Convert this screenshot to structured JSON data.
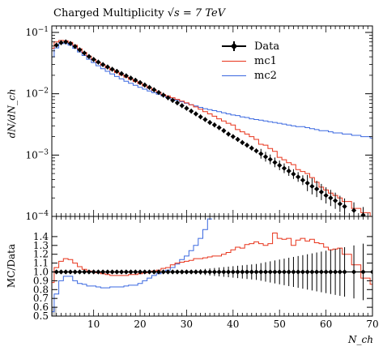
{
  "title": "Charged Multiplicity",
  "title_sqrt_s": "√s = 7 TeV",
  "top_ylabel": "dN/dN_ch",
  "bottom_ylabel": "MC/Data",
  "xlabel": "N_ch",
  "legend": [
    {
      "name": "Data",
      "color": "#000000"
    },
    {
      "name": "mc1",
      "color": "#e8331a"
    },
    {
      "name": "mc2",
      "color": "#3a68e0"
    }
  ],
  "chart_data": [
    {
      "type": "line",
      "panel": "main",
      "yscale": "log",
      "xlim": [
        1,
        70
      ],
      "ylim": [
        0.0001,
        0.1
      ],
      "yticks": [
        0.0001,
        0.001,
        0.01,
        0.1
      ],
      "ytick_labels": [
        "10^-4",
        "10^-3",
        "10^-2",
        "10^-1"
      ],
      "legend_position": "top-right",
      "data": {
        "x": [
          2,
          3,
          4,
          5,
          6,
          7,
          8,
          9,
          10,
          11,
          12,
          13,
          14,
          15,
          16,
          17,
          18,
          19,
          20,
          21,
          22,
          23,
          24,
          25,
          26,
          27,
          28,
          29,
          30,
          31,
          32,
          33,
          34,
          35,
          36,
          37,
          38,
          39,
          40,
          41,
          42,
          43,
          44,
          45,
          46,
          47,
          48,
          49,
          50,
          51,
          52,
          53,
          54,
          55,
          56,
          57,
          58,
          59,
          60,
          61,
          62,
          63,
          64,
          66,
          68,
          70
        ],
        "y": [
          0.062,
          0.068,
          0.07,
          0.066,
          0.059,
          0.052,
          0.046,
          0.0405,
          0.0362,
          0.0328,
          0.0299,
          0.0273,
          0.0251,
          0.0232,
          0.0213,
          0.0196,
          0.018,
          0.0166,
          0.0152,
          0.0139,
          0.0127,
          0.0116,
          0.0105,
          0.0095,
          0.0086,
          0.0078,
          0.0071,
          0.0064,
          0.0058,
          0.0052,
          0.0047,
          0.0042,
          0.0038,
          0.0034,
          0.0031,
          0.0028,
          0.0025,
          0.0022,
          0.002,
          0.0018,
          0.0016,
          0.00145,
          0.0013,
          0.00117,
          0.00105,
          0.00094,
          0.00085,
          0.00076,
          0.00068,
          0.00061,
          0.00055,
          0.00049,
          0.00044,
          0.00039,
          0.00035,
          0.00031,
          0.00028,
          0.00025,
          0.00022,
          0.0002,
          0.00018,
          0.00016,
          0.000145,
          0.000125,
          0.000105,
          9e-05
        ]
      },
      "mc1": {
        "x": [
          1,
          2,
          3,
          4,
          5,
          6,
          7,
          8,
          9,
          10,
          11,
          12,
          13,
          14,
          15,
          16,
          17,
          18,
          19,
          20,
          21,
          22,
          23,
          24,
          25,
          26,
          27,
          28,
          29,
          30,
          31,
          32,
          33,
          34,
          35,
          36,
          37,
          38,
          39,
          40,
          41,
          42,
          43,
          44,
          45,
          46,
          47,
          48,
          49,
          50,
          51,
          52,
          53,
          54,
          55,
          56,
          57,
          58,
          59,
          60,
          61,
          62,
          63,
          64,
          66,
          68,
          70
        ],
        "y": [
          0.055,
          0.07,
          0.074,
          0.073,
          0.069,
          0.062,
          0.054,
          0.047,
          0.041,
          0.0362,
          0.0323,
          0.0292,
          0.0265,
          0.0242,
          0.0221,
          0.0202,
          0.0186,
          0.0171,
          0.0158,
          0.0146,
          0.0134,
          0.0124,
          0.0114,
          0.0106,
          0.0097,
          0.0092,
          0.0086,
          0.0081,
          0.0076,
          0.0071,
          0.0066,
          0.0061,
          0.0056,
          0.0051,
          0.0047,
          0.0043,
          0.0039,
          0.0036,
          0.0033,
          0.0031,
          0.0026,
          0.0024,
          0.0022,
          0.002,
          0.0018,
          0.0015,
          0.00145,
          0.00128,
          0.00115,
          0.00092,
          0.00084,
          0.00075,
          0.0007,
          0.00058,
          0.00054,
          0.0005,
          0.00043,
          0.00036,
          0.0003,
          0.00027,
          0.00024,
          0.00022,
          0.0002,
          0.000175,
          0.000135,
          0.000115,
          9e-05
        ]
      },
      "mc2": {
        "x": [
          1,
          2,
          3,
          4,
          5,
          6,
          7,
          8,
          9,
          10,
          11,
          12,
          13,
          14,
          15,
          16,
          17,
          18,
          19,
          20,
          21,
          22,
          23,
          24,
          25,
          26,
          27,
          28,
          29,
          30,
          31,
          32,
          33,
          34,
          35,
          36,
          37,
          38,
          39,
          40,
          41,
          42,
          43,
          44,
          45,
          46,
          47,
          48,
          49,
          50,
          51,
          52,
          53,
          54,
          55,
          56,
          57,
          58,
          59,
          60,
          61,
          62,
          63,
          64,
          66,
          68,
          70
        ],
        "y": [
          0.04,
          0.056,
          0.066,
          0.066,
          0.062,
          0.055,
          0.048,
          0.042,
          0.0365,
          0.0322,
          0.0286,
          0.0256,
          0.0232,
          0.021,
          0.0191,
          0.0175,
          0.016,
          0.0148,
          0.0137,
          0.0127,
          0.0119,
          0.0111,
          0.0104,
          0.0098,
          0.0092,
          0.0087,
          0.0082,
          0.0078,
          0.0074,
          0.007,
          0.0066,
          0.0063,
          0.006,
          0.0057,
          0.0055,
          0.0053,
          0.0051,
          0.0049,
          0.0047,
          0.0045,
          0.0044,
          0.0042,
          0.0041,
          0.0039,
          0.0038,
          0.0037,
          0.0036,
          0.0035,
          0.0034,
          0.0033,
          0.0032,
          0.0031,
          0.003,
          0.0029,
          0.0029,
          0.0028,
          0.0027,
          0.0026,
          0.0025,
          0.0025,
          0.0024,
          0.0023,
          0.0023,
          0.0022,
          0.0021,
          0.002,
          0.0019
        ]
      }
    },
    {
      "type": "line",
      "panel": "ratio",
      "xlim": [
        1,
        70
      ],
      "ylim": [
        0.5,
        1.5
      ],
      "xticks": [
        10,
        20,
        30,
        40,
        50,
        60,
        70
      ],
      "yticks": [
        0.5,
        0.6,
        0.7,
        0.8,
        0.9,
        1.0,
        1.1,
        1.2,
        1.3,
        1.4
      ],
      "ytick_labels": [
        "0.5",
        "0.6",
        "0.7",
        "0.8",
        "0.9",
        "1.0",
        "1.1",
        "1.2",
        "1.3",
        "1.4"
      ],
      "data": {
        "x": [
          2,
          3,
          4,
          5,
          6,
          7,
          8,
          9,
          10,
          11,
          12,
          13,
          14,
          15,
          16,
          17,
          18,
          19,
          20,
          21,
          22,
          23,
          24,
          25,
          26,
          27,
          28,
          29,
          30,
          31,
          32,
          33,
          34,
          35,
          36,
          37,
          38,
          39,
          40,
          41,
          42,
          43,
          44,
          45,
          46,
          47,
          48,
          49,
          50,
          51,
          52,
          53,
          54,
          55,
          56,
          57,
          58,
          59,
          60,
          61,
          62,
          63,
          64,
          66,
          68,
          70
        ],
        "y": [
          1,
          1,
          1,
          1,
          1,
          1,
          1,
          1,
          1,
          1,
          1,
          1,
          1,
          1,
          1,
          1,
          1,
          1,
          1,
          1,
          1,
          1,
          1,
          1,
          1,
          1,
          1,
          1,
          1,
          1,
          1,
          1,
          1,
          1,
          1,
          1,
          1,
          1,
          1,
          1,
          1,
          1,
          1,
          1,
          1,
          1,
          1,
          1,
          1,
          1,
          1,
          1,
          1,
          1,
          1,
          1,
          1,
          1,
          1,
          1,
          1,
          1,
          1,
          1,
          1,
          1
        ],
        "err": [
          0.01,
          0.01,
          0.01,
          0.01,
          0.01,
          0.01,
          0.01,
          0.01,
          0.01,
          0.01,
          0.01,
          0.01,
          0.01,
          0.01,
          0.01,
          0.01,
          0.01,
          0.01,
          0.01,
          0.01,
          0.01,
          0.01,
          0.01,
          0.01,
          0.01,
          0.01,
          0.01,
          0.01,
          0.015,
          0.02,
          0.025,
          0.03,
          0.035,
          0.04,
          0.045,
          0.05,
          0.055,
          0.06,
          0.065,
          0.07,
          0.075,
          0.08,
          0.085,
          0.09,
          0.1,
          0.11,
          0.12,
          0.13,
          0.14,
          0.15,
          0.16,
          0.17,
          0.18,
          0.19,
          0.2,
          0.21,
          0.22,
          0.23,
          0.24,
          0.25,
          0.26,
          0.27,
          0.28,
          0.3,
          0.32,
          0.35
        ]
      },
      "mc1": {
        "x": [
          1,
          2,
          3,
          4,
          5,
          6,
          7,
          8,
          9,
          10,
          11,
          12,
          13,
          14,
          15,
          16,
          17,
          18,
          19,
          20,
          21,
          22,
          23,
          24,
          25,
          26,
          27,
          28,
          29,
          30,
          31,
          32,
          33,
          34,
          35,
          36,
          37,
          38,
          39,
          40,
          41,
          42,
          43,
          44,
          45,
          46,
          47,
          48,
          49,
          50,
          51,
          52,
          53,
          54,
          55,
          56,
          57,
          58,
          59,
          60,
          61,
          62,
          63,
          64,
          66,
          68,
          70
        ],
        "y": [
          0.88,
          1.05,
          1.12,
          1.15,
          1.14,
          1.1,
          1.06,
          1.03,
          1.01,
          1.0,
          0.99,
          0.98,
          0.97,
          0.96,
          0.96,
          0.96,
          0.96,
          0.97,
          0.97,
          0.98,
          0.99,
          1.0,
          1.01,
          1.02,
          1.04,
          1.05,
          1.08,
          1.1,
          1.11,
          1.12,
          1.13,
          1.15,
          1.15,
          1.16,
          1.17,
          1.18,
          1.18,
          1.2,
          1.22,
          1.25,
          1.28,
          1.27,
          1.31,
          1.32,
          1.34,
          1.32,
          1.3,
          1.32,
          1.44,
          1.38,
          1.37,
          1.38,
          1.3,
          1.36,
          1.38,
          1.35,
          1.37,
          1.33,
          1.32,
          1.28,
          1.25,
          1.26,
          1.27,
          1.2,
          1.08,
          0.93,
          0.86
        ]
      },
      "mc2": {
        "x": [
          1,
          2,
          3,
          4,
          5,
          6,
          7,
          8,
          9,
          10,
          11,
          12,
          13,
          14,
          15,
          16,
          17,
          18,
          19,
          20,
          21,
          22,
          23,
          24,
          25,
          26,
          27,
          28,
          29,
          30,
          31,
          32,
          33,
          34,
          35
        ],
        "y": [
          0.55,
          0.75,
          0.9,
          0.95,
          0.95,
          0.9,
          0.87,
          0.86,
          0.84,
          0.84,
          0.83,
          0.82,
          0.82,
          0.83,
          0.83,
          0.83,
          0.84,
          0.85,
          0.85,
          0.87,
          0.9,
          0.93,
          0.96,
          0.98,
          1.0,
          1.02,
          1.05,
          1.09,
          1.14,
          1.18,
          1.24,
          1.3,
          1.38,
          1.48,
          1.6
        ]
      }
    }
  ]
}
